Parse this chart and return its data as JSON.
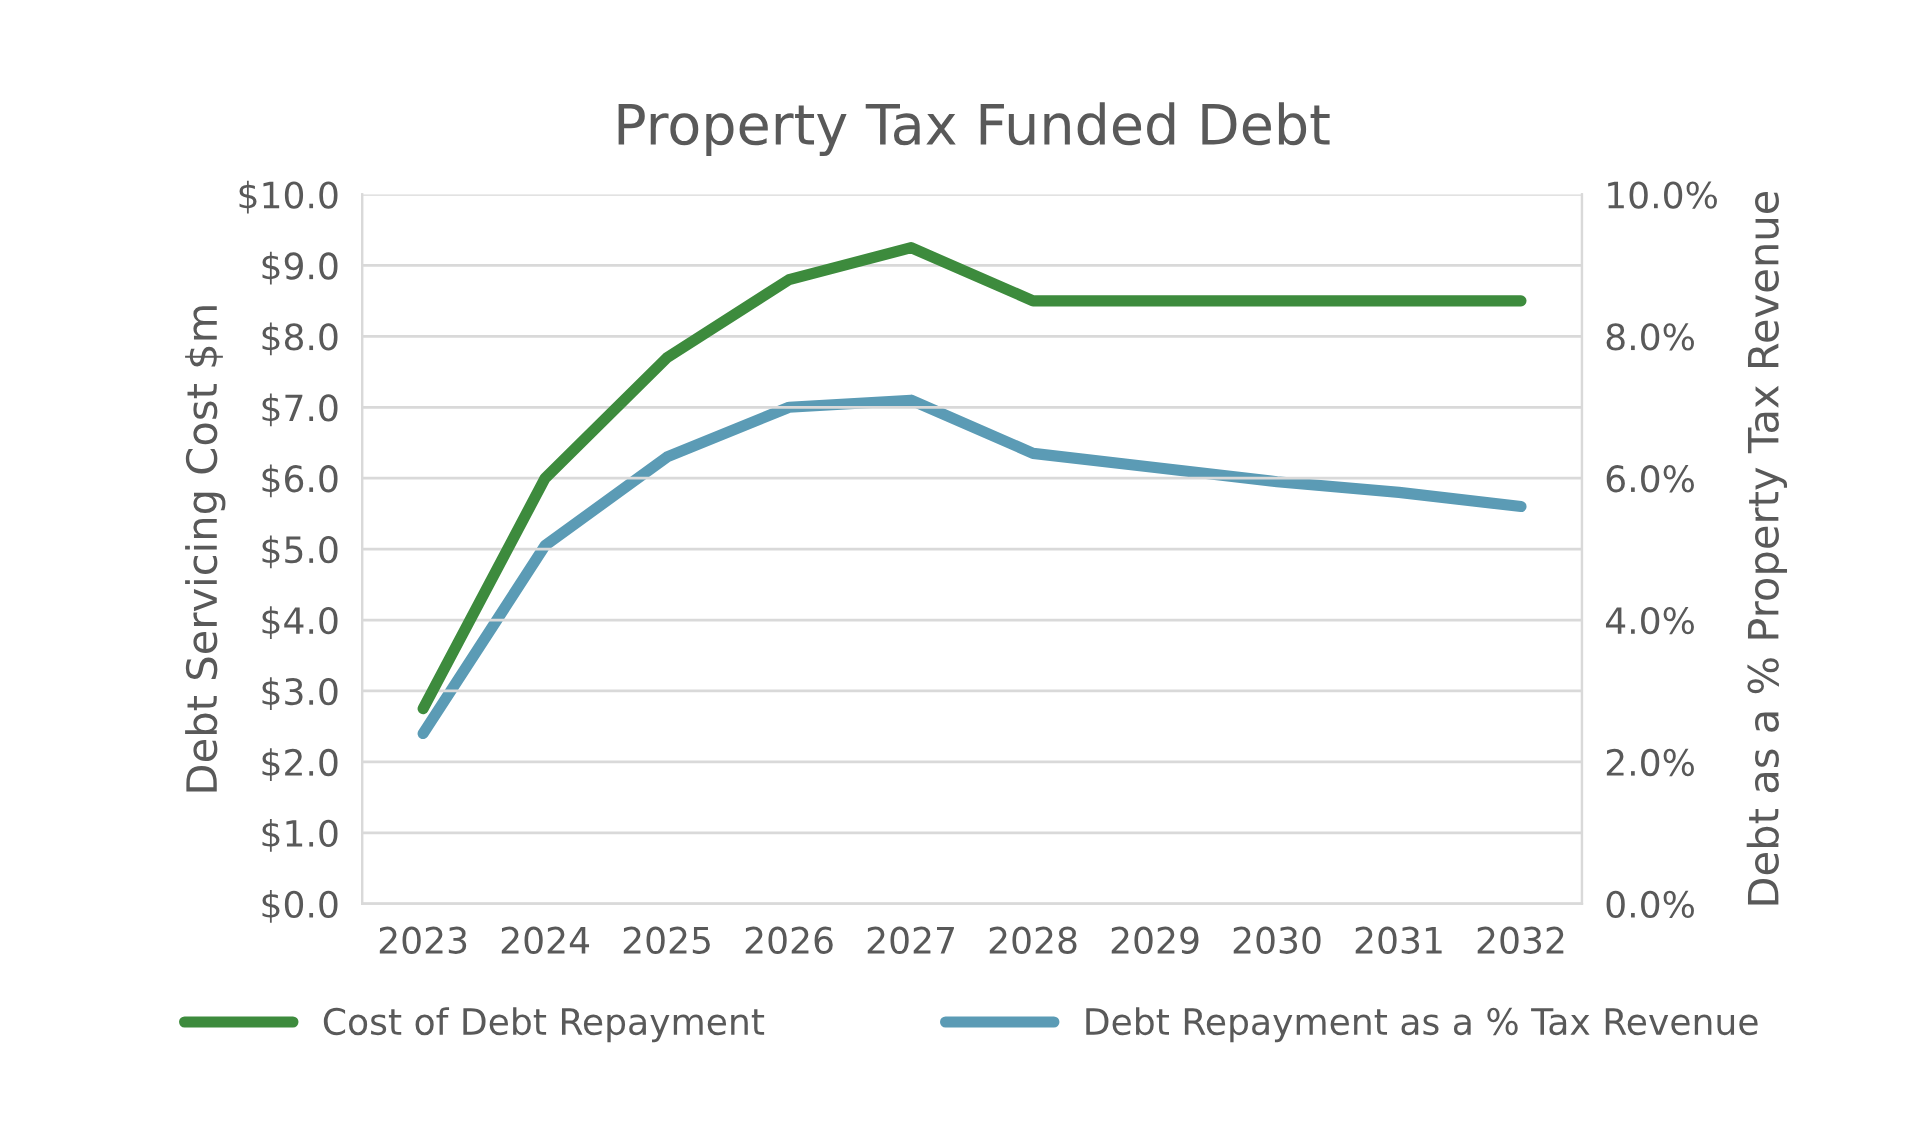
{
  "chart_data": {
    "type": "line",
    "title": "Property Tax Funded Debt",
    "ylabel": "Debt Servicing Cost $m",
    "y2label": "Debt as a % Property Tax Revenue",
    "categories": [
      "2023",
      "2024",
      "2025",
      "2026",
      "2027",
      "2028",
      "2029",
      "2030",
      "2031",
      "2032"
    ],
    "series": [
      {
        "name": "Cost of Debt Repayment",
        "color": "#3d8b3d",
        "values": [
          2.75,
          6.0,
          7.7,
          8.8,
          9.25,
          8.5,
          8.5,
          8.5,
          8.5,
          8.5
        ]
      },
      {
        "name": "Debt Repayment as a % Tax Revenue",
        "color": "#5b9bb5",
        "axis": "y2",
        "values": [
          2.4,
          5.05,
          6.3,
          7.0,
          7.1,
          6.35,
          6.15,
          5.95,
          5.8,
          5.6
        ]
      }
    ],
    "ylim": [
      0,
      10
    ],
    "yticks": [
      {
        "value": 0,
        "label": "$0.0"
      },
      {
        "value": 1,
        "label": "$1.0"
      },
      {
        "value": 2,
        "label": "$2.0"
      },
      {
        "value": 3,
        "label": "$3.0"
      },
      {
        "value": 4,
        "label": "$4.0"
      },
      {
        "value": 5,
        "label": "$5.0"
      },
      {
        "value": 6,
        "label": "$6.0"
      },
      {
        "value": 7,
        "label": "$7.0"
      },
      {
        "value": 8,
        "label": "$8.0"
      },
      {
        "value": 9,
        "label": "$9.0"
      },
      {
        "value": 10,
        "label": "$10.0"
      }
    ],
    "y2lim": [
      0,
      10
    ],
    "y2ticks": [
      {
        "value": 0,
        "label": "0.0%"
      },
      {
        "value": 2,
        "label": "2.0%"
      },
      {
        "value": 4,
        "label": "4.0%"
      },
      {
        "value": 6,
        "label": "6.0%"
      },
      {
        "value": 8,
        "label": "8.0%"
      },
      {
        "value": 10,
        "label": "10.0%"
      }
    ],
    "grid": "y",
    "legend": "bottom",
    "line_style": "solid",
    "marker": "none"
  }
}
